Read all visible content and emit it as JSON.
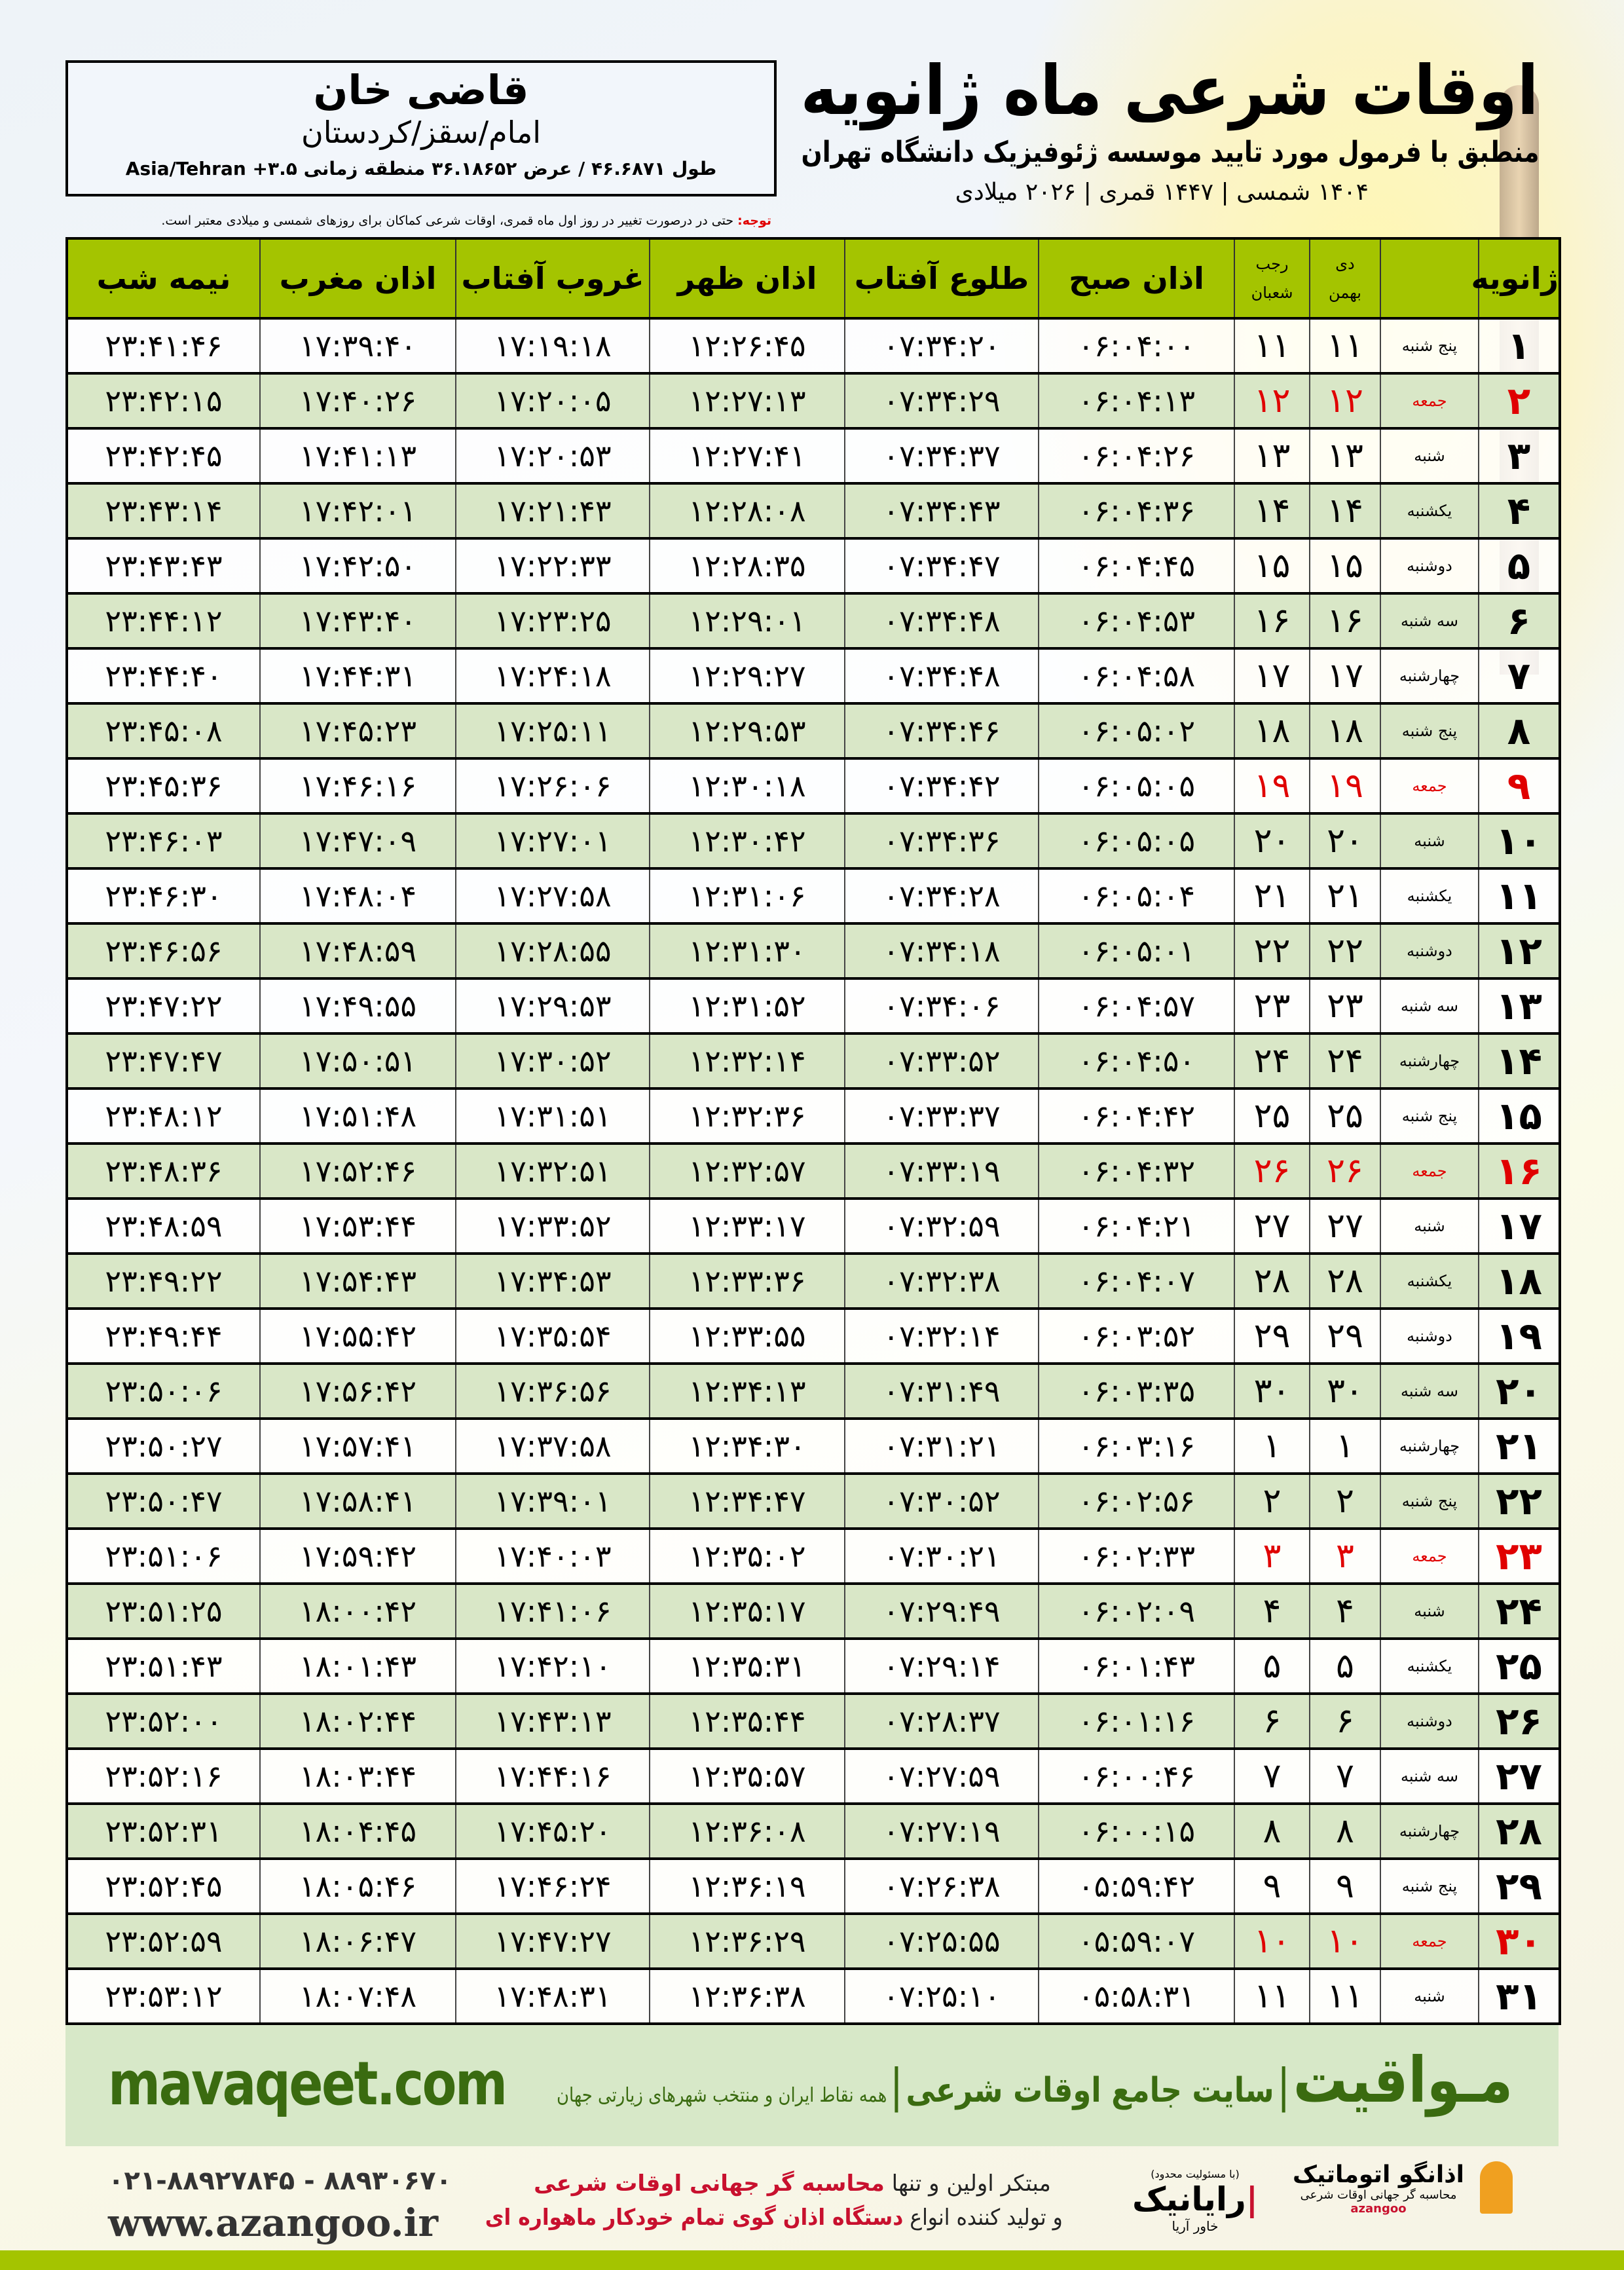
{
  "header": {
    "title": "اوقات شرعی ماه ژانویه",
    "subtitle": "منطبق با فرمول مورد تایید موسسه ژئوفیزیک دانشگاه تهران",
    "dates": "۱۴۰۴ شمسی | ۱۴۴۷ قمری | ۲۰۲۶ میلادی"
  },
  "location": {
    "city": "قاضی خان",
    "province": "امام/سقز/کردستان",
    "coords": "طول ۴۶.۶۸۷۱ / عرض ۳۶.۱۸۶۵۲ منطقه زمانی ۳.۵+ Asia/Tehran"
  },
  "note": {
    "label": "توجه:",
    "text": " حتی در درصورت تغییر در روز اول ماه قمری، اوقات شرعی کماکان برای روزهای شمسی و میلادی معتبر است."
  },
  "table": {
    "headers": {
      "day": "ژانویه",
      "shamsi_top": "دی",
      "shamsi_bottom": "بهمن",
      "hijri_top": "رجب",
      "hijri_bottom": "شعبان",
      "fajr": "اذان صبح",
      "sunrise": "طلوع آفتاب",
      "dhuhr": "اذان ظهر",
      "sunset": "غروب آفتاب",
      "maghrib": "اذان مغرب",
      "midnight": "نیمه شب"
    },
    "friday_color": "#e00000",
    "rows": [
      [
        "۱",
        "پنج شنبه",
        "۱۱",
        "۱۱",
        "۰۶:۰۴:۰۰",
        "۰۷:۳۴:۲۰",
        "۱۲:۲۶:۴۵",
        "۱۷:۱۹:۱۸",
        "۱۷:۳۹:۴۰",
        "۲۳:۴۱:۴۶"
      ],
      [
        "۲",
        "جمعه",
        "۱۲",
        "۱۲",
        "۰۶:۰۴:۱۳",
        "۰۷:۳۴:۲۹",
        "۱۲:۲۷:۱۳",
        "۱۷:۲۰:۰۵",
        "۱۷:۴۰:۲۶",
        "۲۳:۴۲:۱۵"
      ],
      [
        "۳",
        "شنبه",
        "۱۳",
        "۱۳",
        "۰۶:۰۴:۲۶",
        "۰۷:۳۴:۳۷",
        "۱۲:۲۷:۴۱",
        "۱۷:۲۰:۵۳",
        "۱۷:۴۱:۱۳",
        "۲۳:۴۲:۴۵"
      ],
      [
        "۴",
        "یکشنبه",
        "۱۴",
        "۱۴",
        "۰۶:۰۴:۳۶",
        "۰۷:۳۴:۴۳",
        "۱۲:۲۸:۰۸",
        "۱۷:۲۱:۴۳",
        "۱۷:۴۲:۰۱",
        "۲۳:۴۳:۱۴"
      ],
      [
        "۵",
        "دوشنبه",
        "۱۵",
        "۱۵",
        "۰۶:۰۴:۴۵",
        "۰۷:۳۴:۴۷",
        "۱۲:۲۸:۳۵",
        "۱۷:۲۲:۳۳",
        "۱۷:۴۲:۵۰",
        "۲۳:۴۳:۴۳"
      ],
      [
        "۶",
        "سه شنبه",
        "۱۶",
        "۱۶",
        "۰۶:۰۴:۵۳",
        "۰۷:۳۴:۴۸",
        "۱۲:۲۹:۰۱",
        "۱۷:۲۳:۲۵",
        "۱۷:۴۳:۴۰",
        "۲۳:۴۴:۱۲"
      ],
      [
        "۷",
        "چهارشنبه",
        "۱۷",
        "۱۷",
        "۰۶:۰۴:۵۸",
        "۰۷:۳۴:۴۸",
        "۱۲:۲۹:۲۷",
        "۱۷:۲۴:۱۸",
        "۱۷:۴۴:۳۱",
        "۲۳:۴۴:۴۰"
      ],
      [
        "۸",
        "پنج شنبه",
        "۱۸",
        "۱۸",
        "۰۶:۰۵:۰۲",
        "۰۷:۳۴:۴۶",
        "۱۲:۲۹:۵۳",
        "۱۷:۲۵:۱۱",
        "۱۷:۴۵:۲۳",
        "۲۳:۴۵:۰۸"
      ],
      [
        "۹",
        "جمعه",
        "۱۹",
        "۱۹",
        "۰۶:۰۵:۰۵",
        "۰۷:۳۴:۴۲",
        "۱۲:۳۰:۱۸",
        "۱۷:۲۶:۰۶",
        "۱۷:۴۶:۱۶",
        "۲۳:۴۵:۳۶"
      ],
      [
        "۱۰",
        "شنبه",
        "۲۰",
        "۲۰",
        "۰۶:۰۵:۰۵",
        "۰۷:۳۴:۳۶",
        "۱۲:۳۰:۴۲",
        "۱۷:۲۷:۰۱",
        "۱۷:۴۷:۰۹",
        "۲۳:۴۶:۰۳"
      ],
      [
        "۱۱",
        "یکشنبه",
        "۲۱",
        "۲۱",
        "۰۶:۰۵:۰۴",
        "۰۷:۳۴:۲۸",
        "۱۲:۳۱:۰۶",
        "۱۷:۲۷:۵۸",
        "۱۷:۴۸:۰۴",
        "۲۳:۴۶:۳۰"
      ],
      [
        "۱۲",
        "دوشنبه",
        "۲۲",
        "۲۲",
        "۰۶:۰۵:۰۱",
        "۰۷:۳۴:۱۸",
        "۱۲:۳۱:۳۰",
        "۱۷:۲۸:۵۵",
        "۱۷:۴۸:۵۹",
        "۲۳:۴۶:۵۶"
      ],
      [
        "۱۳",
        "سه شنبه",
        "۲۳",
        "۲۳",
        "۰۶:۰۴:۵۷",
        "۰۷:۳۴:۰۶",
        "۱۲:۳۱:۵۲",
        "۱۷:۲۹:۵۳",
        "۱۷:۴۹:۵۵",
        "۲۳:۴۷:۲۲"
      ],
      [
        "۱۴",
        "چهارشنبه",
        "۲۴",
        "۲۴",
        "۰۶:۰۴:۵۰",
        "۰۷:۳۳:۵۲",
        "۱۲:۳۲:۱۴",
        "۱۷:۳۰:۵۲",
        "۱۷:۵۰:۵۱",
        "۲۳:۴۷:۴۷"
      ],
      [
        "۱۵",
        "پنج شنبه",
        "۲۵",
        "۲۵",
        "۰۶:۰۴:۴۲",
        "۰۷:۳۳:۳۷",
        "۱۲:۳۲:۳۶",
        "۱۷:۳۱:۵۱",
        "۱۷:۵۱:۴۸",
        "۲۳:۴۸:۱۲"
      ],
      [
        "۱۶",
        "جمعه",
        "۲۶",
        "۲۶",
        "۰۶:۰۴:۳۲",
        "۰۷:۳۳:۱۹",
        "۱۲:۳۲:۵۷",
        "۱۷:۳۲:۵۱",
        "۱۷:۵۲:۴۶",
        "۲۳:۴۸:۳۶"
      ],
      [
        "۱۷",
        "شنبه",
        "۲۷",
        "۲۷",
        "۰۶:۰۴:۲۱",
        "۰۷:۳۲:۵۹",
        "۱۲:۳۳:۱۷",
        "۱۷:۳۳:۵۲",
        "۱۷:۵۳:۴۴",
        "۲۳:۴۸:۵۹"
      ],
      [
        "۱۸",
        "یکشنبه",
        "۲۸",
        "۲۸",
        "۰۶:۰۴:۰۷",
        "۰۷:۳۲:۳۸",
        "۱۲:۳۳:۳۶",
        "۱۷:۳۴:۵۳",
        "۱۷:۵۴:۴۳",
        "۲۳:۴۹:۲۲"
      ],
      [
        "۱۹",
        "دوشنبه",
        "۲۹",
        "۲۹",
        "۰۶:۰۳:۵۲",
        "۰۷:۳۲:۱۴",
        "۱۲:۳۳:۵۵",
        "۱۷:۳۵:۵۴",
        "۱۷:۵۵:۴۲",
        "۲۳:۴۹:۴۴"
      ],
      [
        "۲۰",
        "سه شنبه",
        "۳۰",
        "۳۰",
        "۰۶:۰۳:۳۵",
        "۰۷:۳۱:۴۹",
        "۱۲:۳۴:۱۳",
        "۱۷:۳۶:۵۶",
        "۱۷:۵۶:۴۲",
        "۲۳:۵۰:۰۶"
      ],
      [
        "۲۱",
        "چهارشنبه",
        "۱",
        "۱",
        "۰۶:۰۳:۱۶",
        "۰۷:۳۱:۲۱",
        "۱۲:۳۴:۳۰",
        "۱۷:۳۷:۵۸",
        "۱۷:۵۷:۴۱",
        "۲۳:۵۰:۲۷"
      ],
      [
        "۲۲",
        "پنج شنبه",
        "۲",
        "۲",
        "۰۶:۰۲:۵۶",
        "۰۷:۳۰:۵۲",
        "۱۲:۳۴:۴۷",
        "۱۷:۳۹:۰۱",
        "۱۷:۵۸:۴۱",
        "۲۳:۵۰:۴۷"
      ],
      [
        "۲۳",
        "جمعه",
        "۳",
        "۳",
        "۰۶:۰۲:۳۳",
        "۰۷:۳۰:۲۱",
        "۱۲:۳۵:۰۲",
        "۱۷:۴۰:۰۳",
        "۱۷:۵۹:۴۲",
        "۲۳:۵۱:۰۶"
      ],
      [
        "۲۴",
        "شنبه",
        "۴",
        "۴",
        "۰۶:۰۲:۰۹",
        "۰۷:۲۹:۴۹",
        "۱۲:۳۵:۱۷",
        "۱۷:۴۱:۰۶",
        "۱۸:۰۰:۴۲",
        "۲۳:۵۱:۲۵"
      ],
      [
        "۲۵",
        "یکشنبه",
        "۵",
        "۵",
        "۰۶:۰۱:۴۳",
        "۰۷:۲۹:۱۴",
        "۱۲:۳۵:۳۱",
        "۱۷:۴۲:۱۰",
        "۱۸:۰۱:۴۳",
        "۲۳:۵۱:۴۳"
      ],
      [
        "۲۶",
        "دوشنبه",
        "۶",
        "۶",
        "۰۶:۰۱:۱۶",
        "۰۷:۲۸:۳۷",
        "۱۲:۳۵:۴۴",
        "۱۷:۴۳:۱۳",
        "۱۸:۰۲:۴۴",
        "۲۳:۵۲:۰۰"
      ],
      [
        "۲۷",
        "سه شنبه",
        "۷",
        "۷",
        "۰۶:۰۰:۴۶",
        "۰۷:۲۷:۵۹",
        "۱۲:۳۵:۵۷",
        "۱۷:۴۴:۱۶",
        "۱۸:۰۳:۴۴",
        "۲۳:۵۲:۱۶"
      ],
      [
        "۲۸",
        "چهارشنبه",
        "۸",
        "۸",
        "۰۶:۰۰:۱۵",
        "۰۷:۲۷:۱۹",
        "۱۲:۳۶:۰۸",
        "۱۷:۴۵:۲۰",
        "۱۸:۰۴:۴۵",
        "۲۳:۵۲:۳۱"
      ],
      [
        "۲۹",
        "پنج شنبه",
        "۹",
        "۹",
        "۰۵:۵۹:۴۲",
        "۰۷:۲۶:۳۸",
        "۱۲:۳۶:۱۹",
        "۱۷:۴۶:۲۴",
        "۱۸:۰۵:۴۶",
        "۲۳:۵۲:۴۵"
      ],
      [
        "۳۰",
        "جمعه",
        "۱۰",
        "۱۰",
        "۰۵:۵۹:۰۷",
        "۰۷:۲۵:۵۵",
        "۱۲:۳۶:۲۹",
        "۱۷:۴۷:۲۷",
        "۱۸:۰۶:۴۷",
        "۲۳:۵۲:۵۹"
      ],
      [
        "۳۱",
        "شنبه",
        "۱۱",
        "۱۱",
        "۰۵:۵۸:۳۱",
        "۰۷:۲۵:۱۰",
        "۱۲:۳۶:۳۸",
        "۱۷:۴۸:۳۱",
        "۱۸:۰۷:۴۸",
        "۲۳:۵۳:۱۲"
      ]
    ]
  },
  "footer": {
    "site": "mavaqeet.com",
    "brand": "مـواقیت",
    "brand_tagline": "سایت جامع اوقات شرعی",
    "brand_sub": "همه نقاط ایران و منتخب شهرهای زیارتی جهان",
    "phones": "۰۲۱-۸۸۹۲۷۸۴۵ - ۸۸۹۳۰۶۷۰",
    "website": "www.azangoo.ir",
    "promo_line1_a": "مبتکر اولین و تنها ",
    "promo_line1_b": "محاسبه گر جهانی اوقات شرعی",
    "promo_line2_a": "و تولید کننده انواع ",
    "promo_line2_b": "دستگاه اذان گوی تمام خودکار ماهواره ای",
    "logo_rayanik_small": "(با مسئولیت محدود)",
    "logo_rayanik": "رایانیک",
    "logo_rayanik_sub": "خاور آریا",
    "logo_azangoo": "اذانگو اتوماتیک",
    "logo_azangoo_sub": "محاسبه گر جهانی اوقات شرعی",
    "logo_azangoo_en": "azangoo",
    "accent": "#a4c400",
    "brand_color": "#3a6b10"
  }
}
